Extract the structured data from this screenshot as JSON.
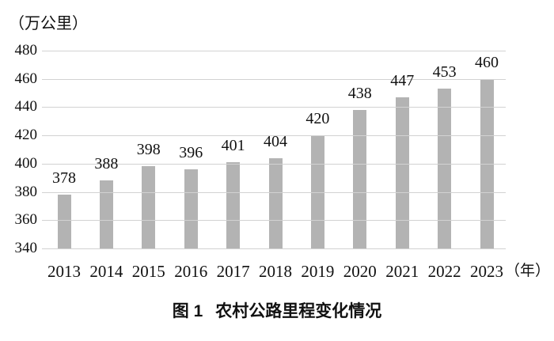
{
  "figure": {
    "y_unit_label": "（万公里）",
    "x_unit_label": "（年）",
    "caption_label": "图 1",
    "caption_title": "农村公路里程变化情况"
  },
  "chart_data": {
    "type": "bar",
    "title": "农村公路里程变化情况",
    "categories": [
      "2013",
      "2014",
      "2015",
      "2016",
      "2017",
      "2018",
      "2019",
      "2020",
      "2021",
      "2022",
      "2023"
    ],
    "values": [
      378,
      388,
      398,
      396,
      401,
      404,
      420,
      438,
      447,
      453,
      460
    ],
    "xlabel": "年",
    "ylabel": "万公里",
    "ylim": [
      340,
      480
    ],
    "yticks": [
      340,
      360,
      380,
      400,
      420,
      440,
      460,
      480
    ],
    "grid": true,
    "gridlines_over_bars": true,
    "data_labels": true,
    "legend": "none",
    "bar_color": "#b3b3b3",
    "gridline_color": "#d2d2d2",
    "text_color": "#111111",
    "background_color": "#ffffff"
  }
}
